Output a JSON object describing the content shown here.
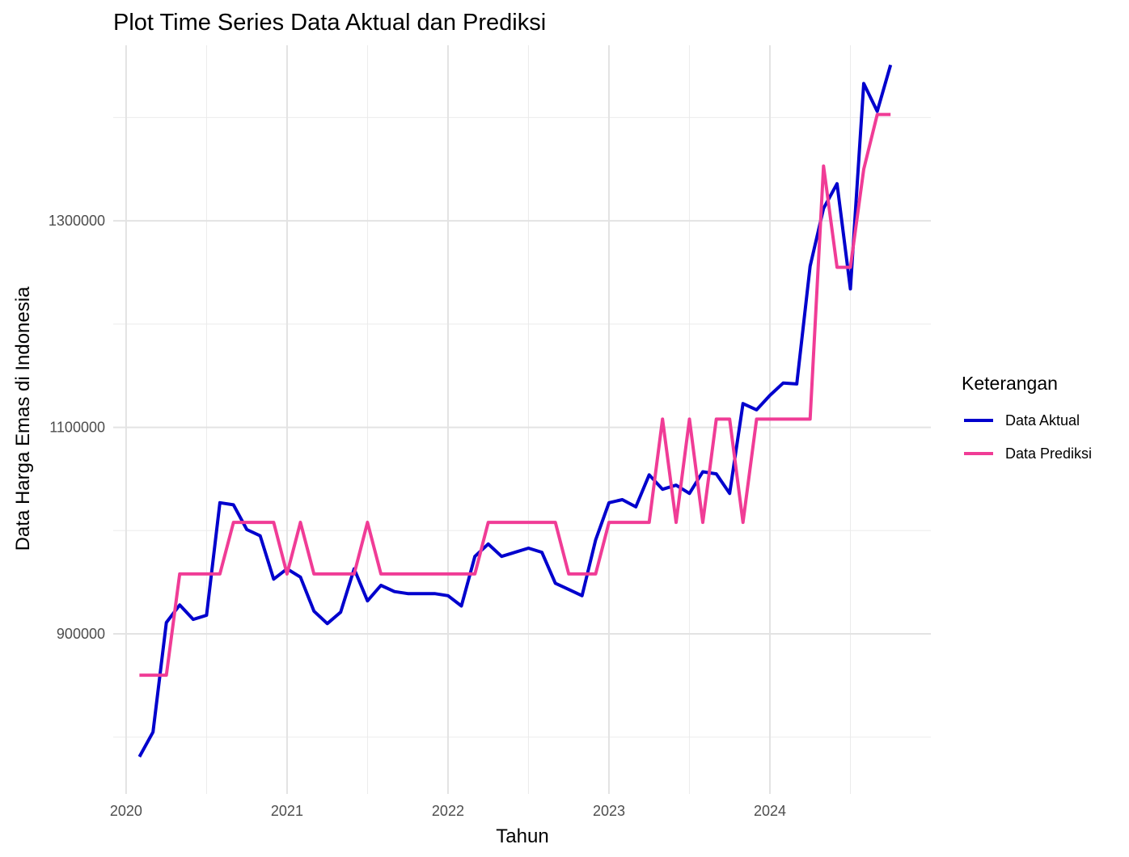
{
  "chart_data": {
    "type": "line",
    "title": "Plot Time Series Data Aktual dan Prediksi",
    "xlabel": "Tahun",
    "ylabel": "Data Harga Emas di Indonesia",
    "xlim": [
      2019.92,
      2025.0
    ],
    "ylim": [
      745000,
      1470000
    ],
    "x_major_ticks": [
      2020,
      2021,
      2022,
      2023,
      2024
    ],
    "x_tick_labels": [
      "2020",
      "2021",
      "2022",
      "2023",
      "2024"
    ],
    "x_minor_ticks": [
      2020.5,
      2021.5,
      2022.5,
      2023.5,
      2024.5
    ],
    "y_major_ticks": [
      900000,
      1100000,
      1300000
    ],
    "y_tick_labels": [
      "900000",
      "1100000",
      "1300000"
    ],
    "y_minor_ticks": [
      800000,
      1000000,
      1200000,
      1400000
    ],
    "grid": true,
    "legend": {
      "title": "Keterangan",
      "position": "right"
    },
    "series": [
      {
        "name": "Data Aktual",
        "color": "#0000CD",
        "x": [
          2020.083,
          2020.167,
          2020.25,
          2020.333,
          2020.417,
          2020.5,
          2020.583,
          2020.667,
          2020.75,
          2020.833,
          2020.917,
          2021.0,
          2021.083,
          2021.167,
          2021.25,
          2021.333,
          2021.417,
          2021.5,
          2021.583,
          2021.667,
          2021.75,
          2021.833,
          2021.917,
          2022.0,
          2022.083,
          2022.167,
          2022.25,
          2022.333,
          2022.417,
          2022.5,
          2022.583,
          2022.667,
          2022.75,
          2022.833,
          2022.917,
          2023.0,
          2023.083,
          2023.167,
          2023.25,
          2023.333,
          2023.417,
          2023.5,
          2023.583,
          2023.667,
          2023.75,
          2023.833,
          2023.917,
          2024.0,
          2024.083,
          2024.167,
          2024.25,
          2024.333,
          2024.417,
          2024.5,
          2024.583,
          2024.667,
          2024.75
        ],
        "y": [
          781000,
          805000,
          911000,
          928000,
          914000,
          918000,
          1027000,
          1025000,
          1001000,
          995000,
          953000,
          963000,
          955000,
          922000,
          910000,
          921000,
          963000,
          932000,
          947000,
          941000,
          939000,
          939000,
          939000,
          937000,
          927000,
          975000,
          987000,
          975000,
          979000,
          983000,
          979000,
          949000,
          943000,
          937000,
          991000,
          1027000,
          1030000,
          1023000,
          1054000,
          1040000,
          1044000,
          1036000,
          1057000,
          1055000,
          1036000,
          1123000,
          1117000,
          1131000,
          1143000,
          1142000,
          1256000,
          1312000,
          1336000,
          1234000,
          1433000,
          1406000,
          1451000
        ]
      },
      {
        "name": "Data Prediksi",
        "color": "#F03C96",
        "x": [
          2020.083,
          2020.25,
          2020.333,
          2020.583,
          2020.667,
          2020.917,
          2021.0,
          2021.083,
          2021.167,
          2021.417,
          2021.5,
          2021.583,
          2022.167,
          2022.25,
          2022.667,
          2022.75,
          2022.917,
          2023.0,
          2023.25,
          2023.333,
          2023.417,
          2023.5,
          2023.583,
          2023.667,
          2023.75,
          2023.833,
          2023.917,
          2024.25,
          2024.333,
          2024.417,
          2024.5,
          2024.583,
          2024.667,
          2024.75
        ],
        "y": [
          860000,
          860000,
          958000,
          958000,
          1008000,
          1008000,
          958000,
          1008000,
          958000,
          958000,
          1008000,
          958000,
          958000,
          1008000,
          1008000,
          958000,
          958000,
          1008000,
          1008000,
          1108000,
          1008000,
          1108000,
          1008000,
          1108000,
          1108000,
          1008000,
          1108000,
          1108000,
          1353000,
          1255000,
          1255000,
          1350000,
          1403000,
          1403000
        ]
      }
    ]
  }
}
